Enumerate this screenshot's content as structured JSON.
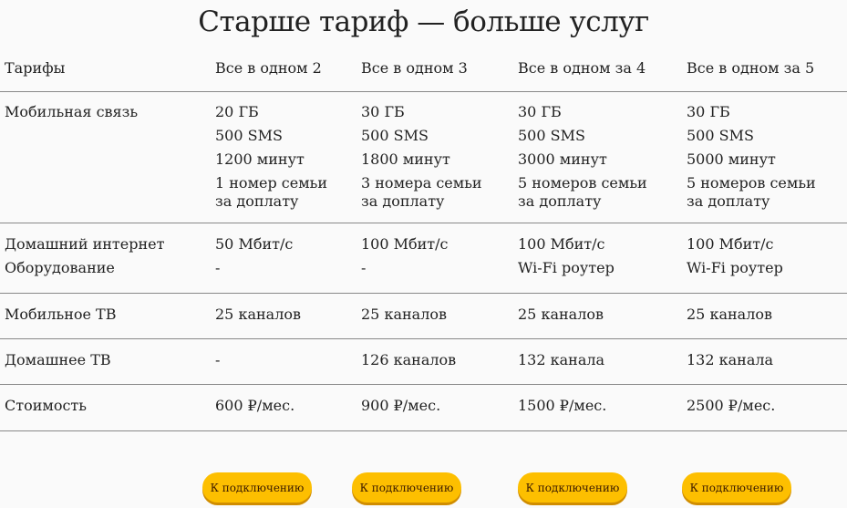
{
  "title": "Старше тариф — больше услуг",
  "header": {
    "label": "Тарифы",
    "plans": [
      "Все в одном 2",
      "Все в одном 3",
      "Все в одном за 4",
      "Все в одном за 5"
    ]
  },
  "rows": [
    {
      "label": [
        "Мобильная связь"
      ],
      "values": [
        [
          "20 ГБ",
          "500 SMS",
          "1200 минут",
          "1 номер семьи",
          "за доплату"
        ],
        [
          "30 ГБ",
          "500 SMS",
          "1800 минут",
          "3 номера семьи",
          "за доплату"
        ],
        [
          "30 ГБ",
          "500 SMS",
          "3000 минут",
          "5 номеров семьи",
          "за доплату"
        ],
        [
          "30 ГБ",
          "500 SMS",
          "5000 минут",
          "5 номеров семьи",
          "за доплату"
        ]
      ]
    },
    {
      "label": [
        "Домашний интернет",
        "Оборудование"
      ],
      "values": [
        [
          "50 Мбит/с",
          "-"
        ],
        [
          "100 Мбит/с",
          "-"
        ],
        [
          "100 Мбит/с",
          "Wi-Fi роутер"
        ],
        [
          "100 Мбит/с",
          "Wi-Fi роутер"
        ]
      ]
    },
    {
      "label": [
        "Мобильное ТВ"
      ],
      "values": [
        [
          "25 каналов"
        ],
        [
          "25 каналов"
        ],
        [
          "25 каналов"
        ],
        [
          "25 каналов"
        ]
      ]
    },
    {
      "label": [
        "Домашнее ТВ"
      ],
      "values": [
        [
          "-"
        ],
        [
          "126 каналов"
        ],
        [
          "132 канала"
        ],
        [
          "132 канала"
        ]
      ]
    },
    {
      "label": [
        "Стоимость"
      ],
      "values": [
        [
          "600 ₽/мес."
        ],
        [
          "900 ₽/мес."
        ],
        [
          " 1500 ₽/мес."
        ],
        [
          "2500 ₽/мес."
        ]
      ]
    }
  ],
  "button_label": "К подключению",
  "colors": {
    "button": "#fdbf00",
    "background": "#fafafa"
  }
}
